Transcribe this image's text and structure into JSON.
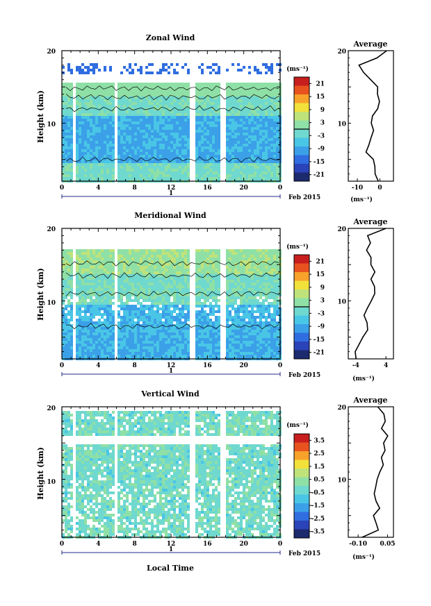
{
  "colors": {
    "scale": [
      "#1c2a6e",
      "#2b43b8",
      "#2f6de0",
      "#3ba0e8",
      "#49c6e6",
      "#6fd8cf",
      "#8fe0a6",
      "#bfe37a",
      "#f2e13a",
      "#f7a22b",
      "#e8521f",
      "#c81e1e"
    ],
    "contour": "#000000",
    "profile": "#000000"
  },
  "xaxis": {
    "ticks": [
      "0",
      "4",
      "8",
      "12",
      "16",
      "20",
      "0"
    ],
    "date_tick": "1",
    "date_label": "Feb 2015",
    "label": "Local Time"
  },
  "chart_data": [
    {
      "type": "heatmap",
      "title": "Zonal Wind",
      "ylabel": "Height (km)",
      "yticks": [
        "20",
        "10"
      ],
      "xlim": [
        0,
        24
      ],
      "ylim": [
        2,
        20
      ],
      "colorbar": {
        "unit": "(ms⁻¹)",
        "ticks": [
          "21",
          "15",
          "9",
          "3",
          "-3",
          "-9",
          "-15",
          "-21"
        ],
        "range": [
          -24,
          24
        ],
        "marker_value": 0
      },
      "profile": {
        "title": "Average",
        "xticks": [
          "-10",
          "0"
        ],
        "xlabel": "(ms⁻¹)",
        "xlim": [
          -14,
          6
        ],
        "height": [
          2,
          3,
          4,
          5,
          6,
          7,
          8,
          9,
          10,
          11,
          12,
          13,
          14,
          15,
          16,
          17,
          18,
          19,
          20
        ],
        "values": [
          -1,
          -2,
          -2,
          -3,
          -6,
          -5,
          -4,
          -3,
          -4,
          -3,
          -1,
          0,
          -1,
          -1,
          -4,
          -7,
          -9,
          -1,
          3
        ]
      }
    },
    {
      "type": "heatmap",
      "title": "Meridional Wind",
      "ylabel": "Height (km)",
      "yticks": [
        "20",
        "10"
      ],
      "xlim": [
        0,
        24
      ],
      "ylim": [
        2,
        20
      ],
      "colorbar": {
        "unit": "(ms⁻¹)",
        "ticks": [
          "21",
          "15",
          "9",
          "3",
          "-3",
          "-9",
          "-15",
          "-21"
        ],
        "range": [
          -24,
          24
        ],
        "marker_value": 0
      },
      "profile": {
        "title": "Average",
        "xticks": [
          "-4",
          "4"
        ],
        "xlabel": "(ms⁻¹)",
        "xlim": [
          -6,
          6
        ],
        "height": [
          2,
          3,
          4,
          5,
          6,
          7,
          8,
          9,
          10,
          11,
          12,
          13,
          14,
          15,
          16,
          17,
          18,
          19,
          20
        ],
        "values": [
          -4,
          -4,
          -3,
          -2,
          -1,
          -1,
          -2,
          -1,
          0,
          1,
          1,
          0,
          1,
          0,
          0,
          -1,
          0,
          -1,
          4
        ]
      }
    },
    {
      "type": "heatmap",
      "title": "Vertical Wind",
      "ylabel": "Height (km)",
      "yticks": [
        "20",
        "10"
      ],
      "xlim": [
        0,
        24
      ],
      "ylim": [
        2,
        20
      ],
      "colorbar": {
        "unit": "(ms⁻¹)",
        "ticks": [
          "3.5",
          "2.5",
          "1.5",
          "0.5",
          "-0.5",
          "-1.5",
          "-2.5",
          "-3.5"
        ],
        "range": [
          -4,
          4
        ],
        "marker_value": null
      },
      "profile": {
        "title": "Average",
        "xticks": [
          "-0.10",
          "0.05"
        ],
        "xlabel": "(ms⁻¹)",
        "xlim": [
          -0.15,
          0.08
        ],
        "height": [
          2,
          3,
          4,
          5,
          6,
          7,
          8,
          9,
          10,
          11,
          12,
          13,
          14,
          15,
          16,
          17,
          18,
          19,
          20
        ],
        "values": [
          -0.08,
          0.0,
          -0.01,
          -0.02,
          0.01,
          -0.01,
          -0.02,
          -0.01,
          0.0,
          0.01,
          0.03,
          0.02,
          0.04,
          0.03,
          0.05,
          0.02,
          0.04,
          0.03,
          0.0
        ]
      }
    }
  ]
}
